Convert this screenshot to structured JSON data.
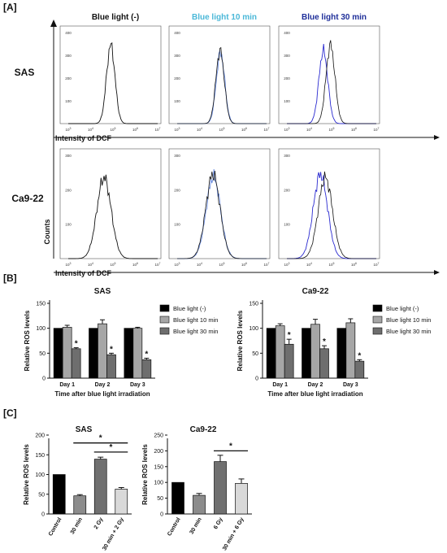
{
  "panel_labels": [
    "[A]",
    "[B]",
    "[C]"
  ],
  "colors": {
    "control_line": "#111111",
    "bl10_line": "#6a8ce0",
    "bl30_line": "#2a2ad0",
    "header_10min": "#4bb8d8",
    "header_30min": "#1f2f9a",
    "bar_control": "#000000",
    "bar_10min": "#a6a6a6",
    "bar_30min": "#6e6e6e",
    "bar_c_30min": "#8c8c8c",
    "bar_c_gy": "#707070",
    "bar_c_combo": "#d9d9d9"
  },
  "chart_data": [
    {
      "id": "A",
      "type": "histogram-grid",
      "column_titles": [
        "Blue light (-)",
        "Blue light 10 min",
        "Blue light 30 min"
      ],
      "row_labels": [
        "SAS",
        "Ca9-22"
      ],
      "y_axis_label": "Counts",
      "x_axis_label": "Intensity of DCF",
      "x_ticks": [
        "10",
        "10",
        "10",
        "10",
        "10"
      ],
      "x_tick_exponents": [
        "3",
        "4",
        "5",
        "6",
        "7"
      ],
      "x_log_range": [
        3,
        7
      ],
      "y_ticks": {
        "SAS": [
          "0",
          "100",
          "200",
          "300",
          "400"
        ],
        "Ca9-22": [
          "0",
          "100",
          "200",
          "300"
        ]
      },
      "y_range": {
        "SAS": [
          0,
          400
        ],
        "Ca9-22": [
          0,
          300
        ]
      },
      "peaks": {
        "SAS": [
          {
            "series": [
              "control"
            ],
            "center_log": 4.9,
            "width_log": 0.19,
            "height": 345
          },
          {
            "series": [
              "control",
              "10min"
            ],
            "center_log": 4.92,
            "width_log": 0.19,
            "height": 320
          },
          {
            "series": [
              "control",
              "30min"
            ],
            "center_log": [
              4.95,
              4.63
            ],
            "width_log": 0.2,
            "height": [
              345,
              320
            ]
          }
        ],
        "Ca9-22": [
          {
            "series": [
              "control"
            ],
            "center_log": 4.6,
            "width_log": 0.32,
            "height": 235
          },
          {
            "series": [
              "control",
              "10min"
            ],
            "center_log": 4.6,
            "width_log": 0.32,
            "height": 245
          },
          {
            "series": [
              "control",
              "30min"
            ],
            "center_log": [
              4.72,
              4.5
            ],
            "width_log": 0.32,
            "height": [
              235,
              245
            ]
          }
        ]
      }
    },
    {
      "id": "B-SAS",
      "type": "bar",
      "title": "SAS",
      "ylabel": "Relative ROS levels",
      "xlabel": "Time after blue light irradiation",
      "categories": [
        "Day 1",
        "Day 2",
        "Day 3"
      ],
      "ylim": [
        0,
        150
      ],
      "yticks": [
        "0",
        "50",
        "100",
        "150"
      ],
      "legend_position": "right",
      "series": [
        {
          "name": "Blue light (-)",
          "values": [
            100,
            100,
            100
          ],
          "errors": [
            0,
            0,
            0
          ]
        },
        {
          "name": "Blue light 10 min",
          "values": [
            102,
            109,
            100
          ],
          "errors": [
            4,
            8,
            2
          ]
        },
        {
          "name": "Blue light 30 min",
          "values": [
            59,
            47,
            37
          ],
          "errors": [
            2,
            3,
            3
          ],
          "stars": [
            "*",
            "*",
            "*"
          ]
        }
      ]
    },
    {
      "id": "B-Ca9-22",
      "type": "bar",
      "title": "Ca9-22",
      "ylabel": "Relative ROS levels",
      "xlabel": "Time after blue light irradiation",
      "categories": [
        "Day 1",
        "Day 2",
        "Day 3"
      ],
      "ylim": [
        0,
        150
      ],
      "yticks": [
        "0",
        "50",
        "100",
        "150"
      ],
      "legend_position": "right",
      "series": [
        {
          "name": "Blue light (-)",
          "values": [
            100,
            100,
            100
          ],
          "errors": [
            0,
            0,
            0
          ]
        },
        {
          "name": "Blue light 10 min",
          "values": [
            105,
            108,
            111
          ],
          "errors": [
            4,
            10,
            8
          ]
        },
        {
          "name": "Blue light 30 min",
          "values": [
            68,
            59,
            34
          ],
          "errors": [
            10,
            6,
            3
          ],
          "stars": [
            "*",
            "*",
            "*"
          ]
        }
      ]
    },
    {
      "id": "C-SAS",
      "type": "bar",
      "title": "SAS",
      "ylabel": "Relative ROS levels",
      "categories": [
        "Control",
        "30 min",
        "2 Gy",
        "30 min + 2 Gy"
      ],
      "values": [
        100,
        46,
        139,
        63
      ],
      "errors": [
        0,
        3,
        5,
        4
      ],
      "ylim": [
        0,
        200
      ],
      "yticks": [
        "0",
        "50",
        "100",
        "150",
        "200"
      ],
      "significance": [
        {
          "from": 1,
          "to": 3,
          "y": 180,
          "label": "*"
        },
        {
          "from": 2,
          "to": 3,
          "y": 157,
          "label": "*"
        }
      ]
    },
    {
      "id": "C-Ca9-22",
      "type": "bar",
      "title": "Ca9-22",
      "ylabel": "Relative ROS levels",
      "categories": [
        "Control",
        "30 min",
        "6 Gy",
        "30 min + 6 Gy"
      ],
      "values": [
        100,
        59,
        166,
        97
      ],
      "errors": [
        0,
        6,
        20,
        14
      ],
      "ylim": [
        0,
        250
      ],
      "yticks": [
        "0",
        "50",
        "100",
        "150",
        "200",
        "250"
      ],
      "significance": [
        {
          "from": 2,
          "to": 3,
          "y": 200,
          "label": "*"
        }
      ]
    }
  ]
}
